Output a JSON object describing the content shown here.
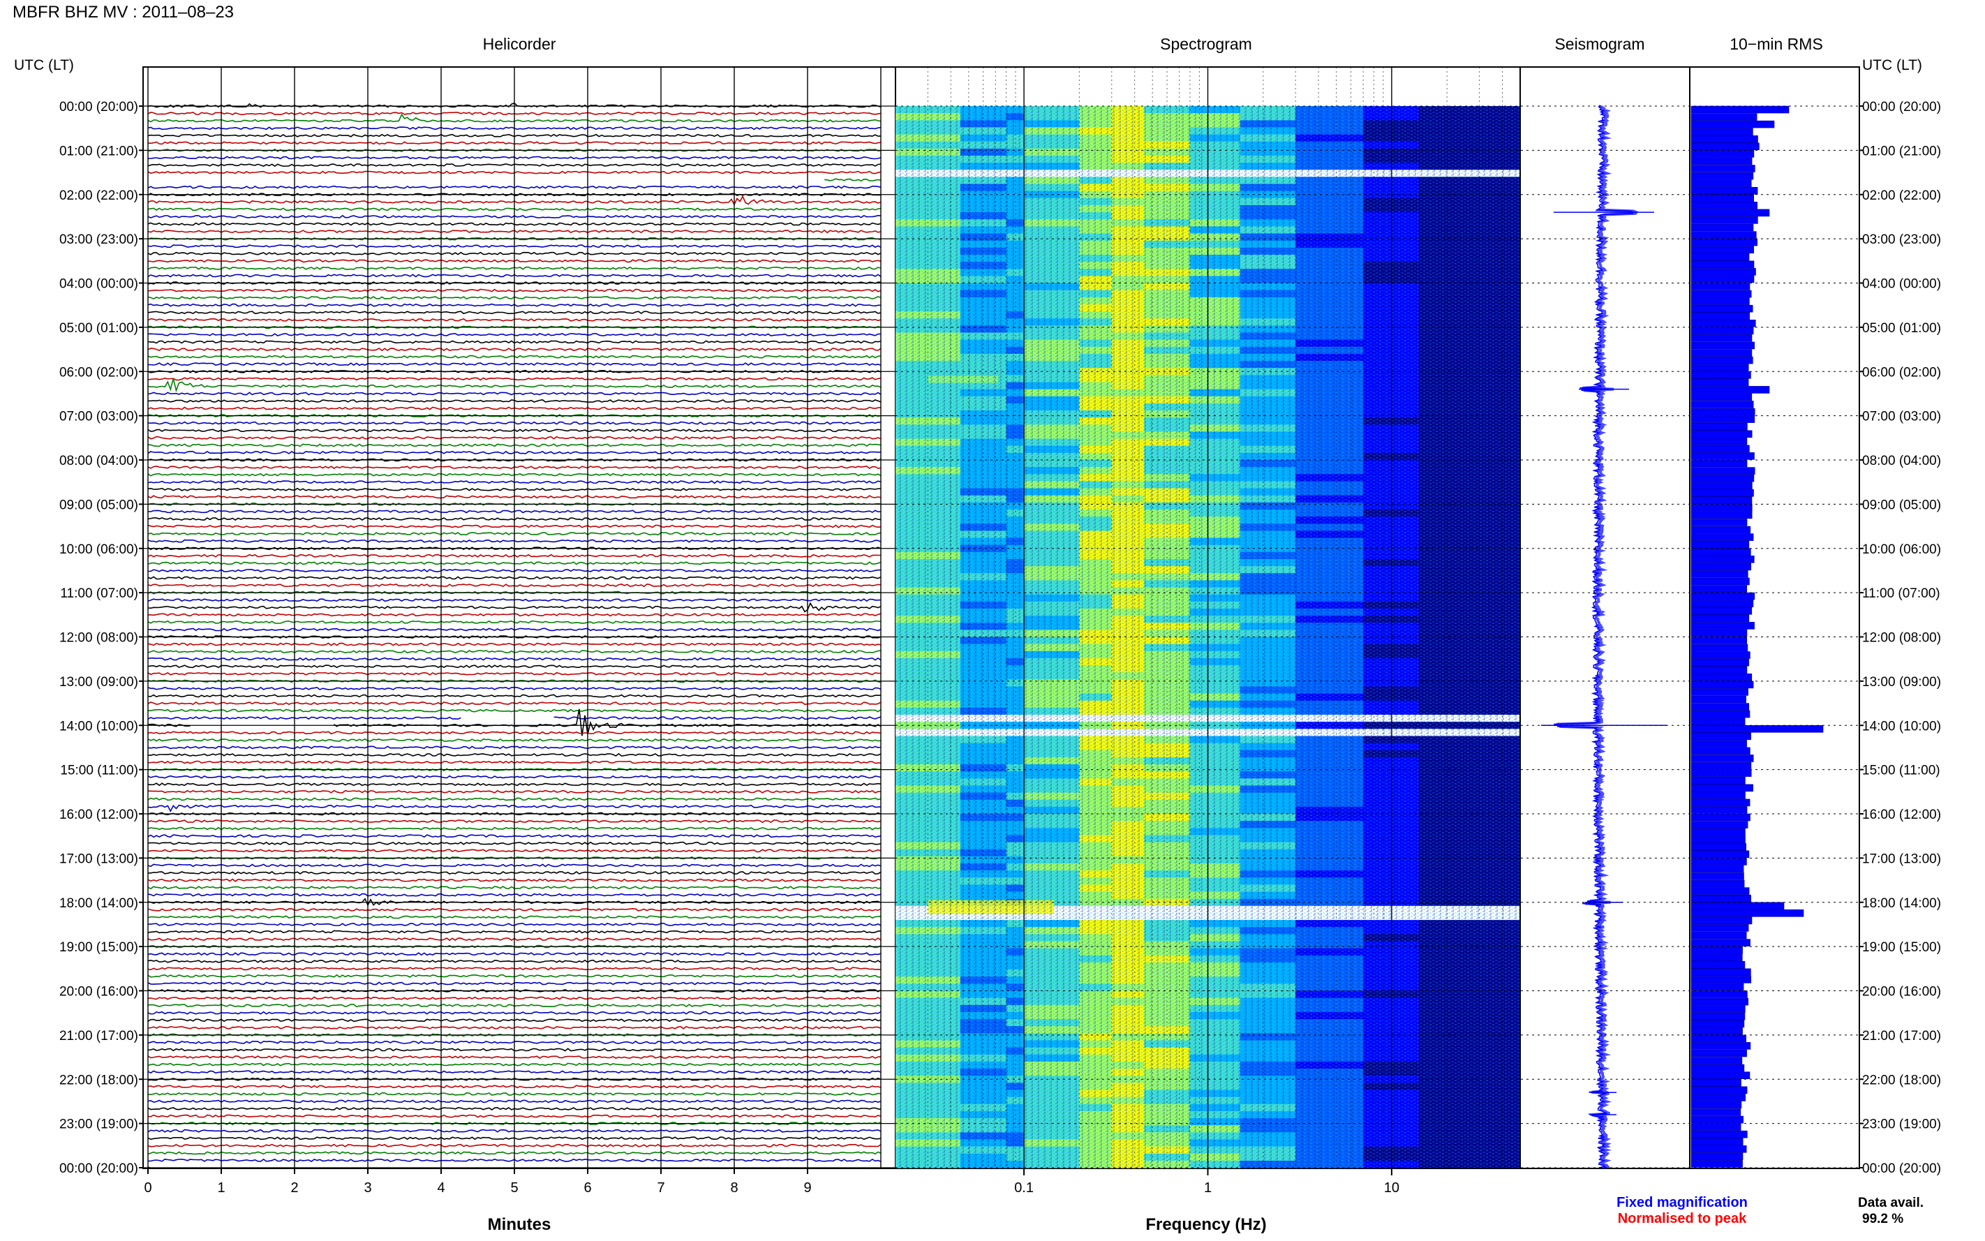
{
  "header": {
    "title": "MBFR BHZ MV : 2011–08–23"
  },
  "panels": {
    "helicorder": "Helicorder",
    "spectrogram": "Spectrogram",
    "seismogram": "Seismogram",
    "rms": "10−min RMS"
  },
  "axes": {
    "time_label": "UTC (LT)",
    "minutes_label": "Minutes",
    "minute_ticks": [
      "0",
      "1",
      "2",
      "3",
      "4",
      "5",
      "6",
      "7",
      "8",
      "9"
    ],
    "frequency_label": "Frequency (Hz)",
    "frequency_ticks": [
      "0.1",
      "1",
      "10"
    ],
    "hour_labels": [
      "00:00 (20:00)",
      "01:00 (21:00)",
      "02:00 (22:00)",
      "03:00 (23:00)",
      "04:00 (00:00)",
      "05:00 (01:00)",
      "06:00 (02:00)",
      "07:00 (03:00)",
      "08:00 (04:00)",
      "09:00 (05:00)",
      "10:00 (06:00)",
      "11:00 (07:00)",
      "12:00 (08:00)",
      "13:00 (09:00)",
      "14:00 (10:00)",
      "15:00 (11:00)",
      "16:00 (12:00)",
      "17:00 (13:00)",
      "18:00 (14:00)",
      "19:00 (15:00)",
      "20:00 (16:00)",
      "21:00 (17:00)",
      "22:00 (18:00)",
      "23:00 (19:00)",
      "00:00 (20:00)"
    ]
  },
  "legend": {
    "fixed": "Fixed magnification",
    "normalised": "Normalised to peak",
    "fixed_color": "#0000ff",
    "normalised_color": "#ff0000"
  },
  "availability": {
    "label": "Data avail.",
    "value": "99.2 %"
  },
  "colors": {
    "trace_cycle": [
      "#000000",
      "#c00000",
      "#008000",
      "#0000c0"
    ],
    "rms_bar": "#0000ff",
    "seismogram": "#0000ff"
  },
  "chart_data": [
    {
      "type": "line",
      "name": "helicorder",
      "x_unit": "minutes",
      "xlim": [
        0,
        10
      ],
      "rows_per_hour": 6,
      "hours": 24,
      "events": [
        {
          "hour": 0.0,
          "minute": 1.4,
          "amp": 1.2
        },
        {
          "hour": 0.0,
          "minute": 5.0,
          "amp": 1.4
        },
        {
          "hour": 0.3,
          "minute": 3.5,
          "amp": 2.0
        },
        {
          "hour": 2.2,
          "minute": 8.0,
          "amp": 3.0
        },
        {
          "hour": 6.3,
          "minute": 0.3,
          "amp": 3.0
        },
        {
          "hour": 11.3,
          "minute": 9.0,
          "amp": 1.8
        },
        {
          "hour": 14.0,
          "minute": 5.9,
          "amp": 5.5
        },
        {
          "hour": 15.8,
          "minute": 0.3,
          "amp": 1.5
        },
        {
          "hour": 18.0,
          "minute": 3.0,
          "amp": 1.8
        }
      ],
      "gaps": [
        {
          "hour": 1.6,
          "from": 0,
          "to": 9.2
        },
        {
          "hour": 13.8,
          "from": 4.3,
          "to": 5.5
        },
        {
          "hour": 14.0,
          "from": 0.6,
          "to": 2.5
        }
      ]
    },
    {
      "type": "heatmap",
      "name": "spectrogram",
      "x_scale": "log",
      "xlim": [
        0.02,
        50
      ],
      "x_ticks": [
        0.1,
        1,
        10
      ],
      "colormap": [
        "#00008b",
        "#0000ff",
        "#0060ff",
        "#00b0ff",
        "#40e0d0",
        "#a0ff60",
        "#ffff00"
      ],
      "peak_frequency_hz": 0.3,
      "gap_hours": [
        1.5,
        13.8,
        14.1,
        18.1,
        18.2
      ]
    },
    {
      "type": "line",
      "name": "seismogram",
      "hours": 24,
      "spikes": [
        {
          "hour": 2.4,
          "amp": 0.8
        },
        {
          "hour": 6.4,
          "amp": 0.4
        },
        {
          "hour": 14.0,
          "amp": 1.0
        },
        {
          "hour": 18.0,
          "amp": 0.3
        },
        {
          "hour": 22.3,
          "amp": 0.2
        },
        {
          "hour": 22.8,
          "amp": 0.2
        }
      ]
    },
    {
      "type": "bar",
      "name": "rms",
      "hours": 24,
      "rows_per_hour": 6,
      "baseline": 0.55,
      "peaks": [
        {
          "hour": 0.0,
          "value": 1.0
        },
        {
          "hour": 0.3,
          "value": 0.85
        },
        {
          "hour": 2.3,
          "value": 0.8
        },
        {
          "hour": 6.3,
          "value": 0.8
        },
        {
          "hour": 14.0,
          "value": 1.35
        },
        {
          "hour": 18.0,
          "value": 0.95
        },
        {
          "hour": 18.2,
          "value": 1.15
        }
      ]
    }
  ]
}
